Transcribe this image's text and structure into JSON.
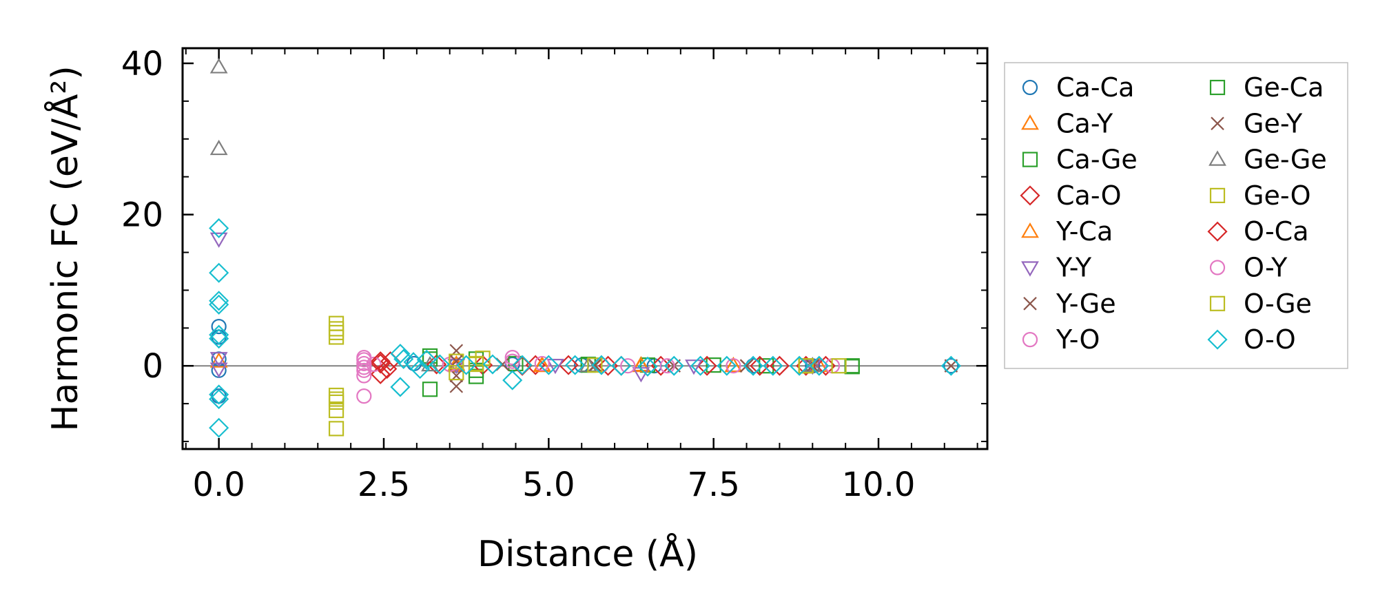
{
  "chart_data": {
    "type": "scatter",
    "xlabel": "Distance (Å)",
    "ylabel": "Harmonic FC (eV/Å²)",
    "xlim": [
      -0.55,
      11.65
    ],
    "ylim": [
      -11,
      42
    ],
    "xticks": [
      0.0,
      2.5,
      5.0,
      7.5,
      10.0
    ],
    "xtick_labels": [
      "0.0",
      "2.5",
      "5.0",
      "7.5",
      "10.0"
    ],
    "yticks": [
      0,
      20,
      40
    ],
    "ytick_labels": [
      "0",
      "20",
      "40"
    ],
    "zero_line": true,
    "grid": false,
    "legend_position": "outside right",
    "legend_columns": 2,
    "series": [
      {
        "name": "Ca-Ca",
        "marker": "circle",
        "color": "#1f77b4",
        "points": [
          [
            0,
            5.2
          ],
          [
            0,
            3.8
          ],
          [
            0,
            0.9
          ],
          [
            0,
            -0.6
          ],
          [
            0,
            -4.0
          ],
          [
            2.96,
            0.3
          ],
          [
            3.6,
            0.1
          ],
          [
            4.45,
            0.2
          ],
          [
            5.5,
            0.1
          ],
          [
            6.6,
            0
          ],
          [
            8.1,
            0
          ],
          [
            9.0,
            0
          ],
          [
            11.1,
            0
          ]
        ]
      },
      {
        "name": "Ca-Y",
        "marker": "triangle-up",
        "color": "#ff7f0e",
        "points": [
          [
            0,
            0.6
          ],
          [
            3.6,
            0.2
          ],
          [
            4.9,
            0.1
          ],
          [
            6.4,
            0.1
          ],
          [
            7.8,
            0
          ],
          [
            9.1,
            0
          ]
        ]
      },
      {
        "name": "Ca-Ge",
        "marker": "square",
        "color": "#2ca02c",
        "points": [
          [
            3.2,
            1.3
          ],
          [
            3.2,
            -3.1
          ],
          [
            3.9,
            0.9
          ],
          [
            3.9,
            -1.4
          ],
          [
            4.5,
            0.3
          ],
          [
            5.6,
            0.2
          ],
          [
            6.5,
            0.1
          ],
          [
            7.5,
            0.1
          ],
          [
            8.3,
            0
          ],
          [
            9.6,
            -0.1
          ]
        ]
      },
      {
        "name": "Ca-O",
        "marker": "diamond",
        "color": "#d62728",
        "points": [
          [
            2.45,
            0.3
          ],
          [
            2.45,
            -1.1
          ],
          [
            2.6,
            0.6
          ],
          [
            3.3,
            0.2
          ],
          [
            4.0,
            0.1
          ],
          [
            4.8,
            0.1
          ],
          [
            5.3,
            0.1
          ],
          [
            5.9,
            0
          ],
          [
            6.7,
            0
          ],
          [
            7.4,
            0
          ],
          [
            8.2,
            0
          ],
          [
            8.9,
            0
          ],
          [
            9.2,
            0
          ]
        ]
      },
      {
        "name": "Y-Ca",
        "marker": "triangle-up",
        "color": "#ff7f0e",
        "points": [
          [
            3.6,
            0
          ],
          [
            4.9,
            0
          ],
          [
            6.4,
            0
          ],
          [
            7.8,
            0
          ]
        ]
      },
      {
        "name": "Y-Y",
        "marker": "triangle-down",
        "color": "#9467bd",
        "points": [
          [
            0,
            16.8
          ],
          [
            0,
            1.0
          ],
          [
            0,
            -0.4
          ],
          [
            3.6,
            0.1
          ],
          [
            5.1,
            0.1
          ],
          [
            6.4,
            -1.0
          ],
          [
            7.2,
            0
          ],
          [
            9.0,
            0
          ]
        ]
      },
      {
        "name": "Y-Ge",
        "marker": "x",
        "color": "#8c564b",
        "points": [
          [
            3.6,
            2.0
          ],
          [
            3.6,
            -1.3
          ],
          [
            3.6,
            -2.7
          ],
          [
            4.3,
            0.2
          ],
          [
            5.7,
            0.1
          ],
          [
            6.9,
            0
          ],
          [
            8.0,
            0
          ],
          [
            9.0,
            0
          ],
          [
            11.1,
            0
          ]
        ]
      },
      {
        "name": "Y-O",
        "marker": "circle",
        "color": "#e377c2",
        "points": [
          [
            2.2,
            1.1
          ],
          [
            2.2,
            0.3
          ],
          [
            2.2,
            -0.6
          ],
          [
            2.2,
            -1.3
          ],
          [
            2.2,
            -4.0
          ],
          [
            2.35,
            0.2
          ],
          [
            3.5,
            0.2
          ],
          [
            4.45,
            1.1
          ],
          [
            4.9,
            0.3
          ],
          [
            5.8,
            0.1
          ],
          [
            6.8,
            0
          ],
          [
            7.8,
            0
          ],
          [
            9.3,
            0
          ]
        ]
      },
      {
        "name": "Ge-Ca",
        "marker": "square",
        "color": "#2ca02c",
        "points": [
          [
            3.2,
            0.9
          ],
          [
            3.9,
            -0.6
          ],
          [
            5.6,
            0.1
          ],
          [
            9.6,
            0
          ]
        ]
      },
      {
        "name": "Ge-Y",
        "marker": "x",
        "color": "#8c564b",
        "points": [
          [
            3.6,
            0.6
          ],
          [
            5.7,
            0
          ],
          [
            8.0,
            0
          ]
        ]
      },
      {
        "name": "Ge-Ge",
        "marker": "triangle-up",
        "color": "#7f7f7f",
        "points": [
          [
            0,
            39.5
          ],
          [
            0,
            28.7
          ],
          [
            3.2,
            0.1
          ],
          [
            5.6,
            0
          ],
          [
            9.0,
            0
          ]
        ]
      },
      {
        "name": "Ge-O",
        "marker": "square",
        "color": "#bcbd22",
        "points": [
          [
            1.78,
            5.6
          ],
          [
            1.78,
            4.9
          ],
          [
            1.78,
            3.8
          ],
          [
            1.78,
            -3.9
          ],
          [
            1.78,
            -4.8
          ],
          [
            1.78,
            -5.9
          ],
          [
            1.78,
            -8.3
          ],
          [
            3.6,
            0.6
          ],
          [
            3.6,
            -0.9
          ],
          [
            3.9,
            0.3
          ],
          [
            4.0,
            1.0
          ],
          [
            5.7,
            0.1
          ],
          [
            8.9,
            0
          ],
          [
            9.4,
            0
          ]
        ]
      },
      {
        "name": "O-Ca",
        "marker": "diamond",
        "color": "#d62728",
        "points": [
          [
            2.45,
            0.6
          ],
          [
            2.55,
            -0.4
          ],
          [
            4.6,
            0
          ],
          [
            6.1,
            0
          ],
          [
            8.5,
            0
          ]
        ]
      },
      {
        "name": "O-Y",
        "marker": "circle",
        "color": "#e377c2",
        "points": [
          [
            2.2,
            0.8
          ],
          [
            2.2,
            -0.2
          ],
          [
            4.45,
            0.6
          ],
          [
            6.2,
            0
          ]
        ]
      },
      {
        "name": "O-Ge",
        "marker": "square",
        "color": "#bcbd22",
        "points": [
          [
            1.78,
            4.4
          ],
          [
            1.78,
            -4.4
          ],
          [
            3.9,
            0.2
          ],
          [
            8.9,
            0
          ]
        ]
      },
      {
        "name": "O-O",
        "marker": "diamond",
        "color": "#17becf",
        "points": [
          [
            0,
            18.2
          ],
          [
            0,
            12.3
          ],
          [
            0,
            8.6
          ],
          [
            0,
            8.1
          ],
          [
            0,
            4.1
          ],
          [
            0,
            3.6
          ],
          [
            0,
            -3.8
          ],
          [
            0,
            -4.4
          ],
          [
            0,
            -8.2
          ],
          [
            2.75,
            1.6
          ],
          [
            2.75,
            -2.8
          ],
          [
            2.8,
            0.9
          ],
          [
            2.95,
            0.5
          ],
          [
            3.05,
            -0.4
          ],
          [
            3.15,
            0.8
          ],
          [
            3.35,
            0.2
          ],
          [
            3.75,
            0.1
          ],
          [
            4.15,
            0.2
          ],
          [
            4.45,
            -1.9
          ],
          [
            4.6,
            0.1
          ],
          [
            5.0,
            0.1
          ],
          [
            5.4,
            0.1
          ],
          [
            5.8,
            0.1
          ],
          [
            6.1,
            0
          ],
          [
            6.5,
            -0.1
          ],
          [
            6.9,
            0
          ],
          [
            7.3,
            0
          ],
          [
            7.7,
            0
          ],
          [
            8.1,
            0
          ],
          [
            8.4,
            0
          ],
          [
            8.8,
            0
          ],
          [
            9.1,
            0
          ],
          [
            11.1,
            0
          ]
        ]
      }
    ]
  }
}
